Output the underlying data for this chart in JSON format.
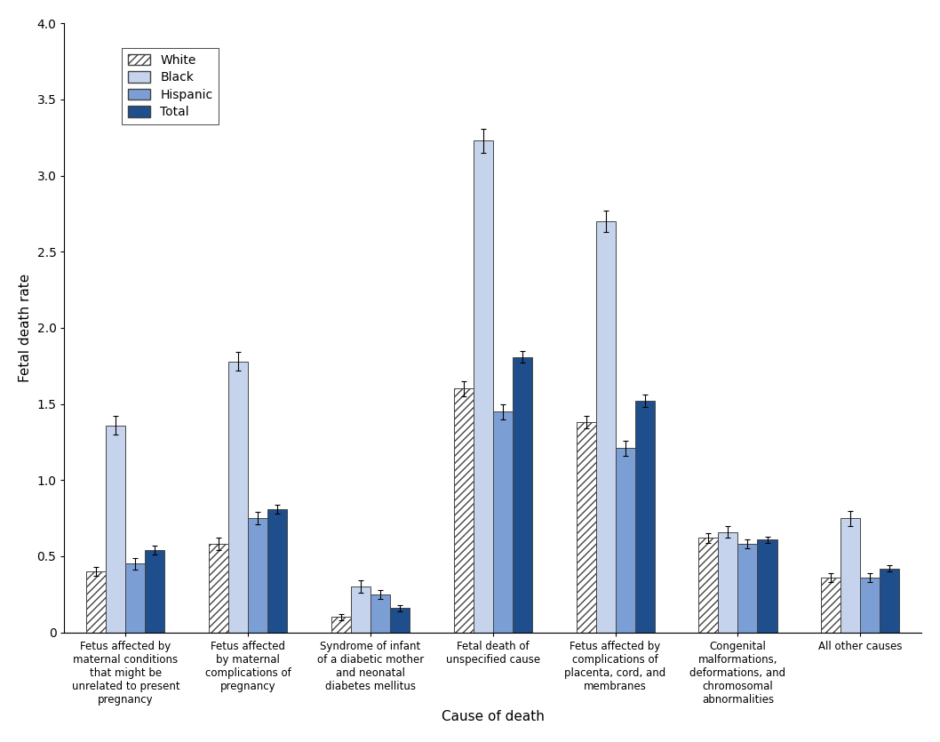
{
  "categories": [
    "Fetus affected by\nmaternal conditions\nthat might be\nunrelated to present\npregnancy",
    "Fetus affected\nby maternal\ncomplications of\npregnancy",
    "Syndrome of infant\nof a diabetic mother\nand neonatal\ndiabetes mellitus",
    "Fetal death of\nunspecified cause",
    "Fetus affected by\ncomplications of\nplacenta, cord, and\nmembranes",
    "Congenital\nmalformations,\ndeformations, and\nchromosomal\nabnormalities",
    "All other causes"
  ],
  "series": {
    "White": [
      0.4,
      0.58,
      0.1,
      1.6,
      1.38,
      0.62,
      0.36
    ],
    "Black": [
      1.36,
      1.78,
      0.3,
      3.23,
      2.7,
      0.66,
      0.75
    ],
    "Hispanic": [
      0.45,
      0.75,
      0.25,
      1.45,
      1.21,
      0.58,
      0.36
    ],
    "Total": [
      0.54,
      0.81,
      0.16,
      1.81,
      1.52,
      0.61,
      0.42
    ]
  },
  "errors": {
    "White": [
      0.03,
      0.04,
      0.02,
      0.05,
      0.04,
      0.03,
      0.03
    ],
    "Black": [
      0.06,
      0.06,
      0.04,
      0.08,
      0.07,
      0.04,
      0.05
    ],
    "Hispanic": [
      0.04,
      0.04,
      0.03,
      0.05,
      0.05,
      0.03,
      0.03
    ],
    "Total": [
      0.03,
      0.03,
      0.02,
      0.04,
      0.04,
      0.02,
      0.02
    ]
  },
  "colors": {
    "White": "#ffffff",
    "Black": "#c5d4ec",
    "Hispanic": "#7b9fd4",
    "Total": "#1f4e8c"
  },
  "hatch": {
    "White": "////",
    "Black": "",
    "Hispanic": "",
    "Total": ""
  },
  "edgecolor": "#444444",
  "ylabel": "Fetal death rate",
  "xlabel": "Cause of death",
  "ylim": [
    0,
    4.0
  ],
  "yticks": [
    0.0,
    0.5,
    1.0,
    1.5,
    2.0,
    2.5,
    3.0,
    3.5,
    4.0
  ],
  "axis_fontsize": 11,
  "tick_fontsize": 10,
  "legend_fontsize": 10,
  "bar_width": 0.16
}
